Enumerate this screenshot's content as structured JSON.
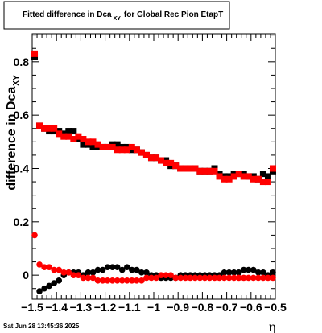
{
  "footer": {
    "timestamp": "Sat Jun 28 13:45:36 2025"
  },
  "chart_data": {
    "type": "scatter",
    "title": "Fitted difference in Dca",
    "title_subscript": "XY",
    "title_suffix": "for Global Rec Pion EtapT",
    "ylabel": "difference in Dca",
    "ylabel_subscript": "XY",
    "xlabel": "η",
    "xlim": [
      -1.5,
      -0.5
    ],
    "ylim": [
      -0.09,
      0.905
    ],
    "x_tick_labels": [
      "−1.5",
      "−1.4",
      "−1.3",
      "−1.2",
      "−1.1",
      "−1",
      "−0.9",
      "−0.8",
      "−0.7",
      "−0.6",
      "−0.5"
    ],
    "y_tick_labels": [
      "0",
      "0.2",
      "0.4",
      "0.6",
      "0.8"
    ],
    "grid": false,
    "legend": "none",
    "series": [
      {
        "marker": "square",
        "color": "#000000",
        "points": [
          [
            -1.49,
            0.82
          ],
          [
            -1.47,
            0.56
          ],
          [
            -1.45,
            0.55
          ],
          [
            -1.43,
            0.54
          ],
          [
            -1.41,
            0.54
          ],
          [
            -1.39,
            0.54
          ],
          [
            -1.37,
            0.53
          ],
          [
            -1.35,
            0.54
          ],
          [
            -1.33,
            0.54
          ],
          [
            -1.31,
            0.51
          ],
          [
            -1.29,
            0.49
          ],
          [
            -1.27,
            0.49
          ],
          [
            -1.25,
            0.48
          ],
          [
            -1.23,
            0.48
          ],
          [
            -1.21,
            0.48
          ],
          [
            -1.19,
            0.48
          ],
          [
            -1.17,
            0.49
          ],
          [
            -1.15,
            0.49
          ],
          [
            -1.13,
            0.48
          ],
          [
            -1.11,
            0.48
          ],
          [
            -1.09,
            0.47
          ],
          [
            -1.07,
            0.47
          ],
          [
            -1.05,
            0.46
          ],
          [
            -1.03,
            0.45
          ],
          [
            -1.01,
            0.44
          ],
          [
            -0.99,
            0.44
          ],
          [
            -0.97,
            0.43
          ],
          [
            -0.95,
            0.43
          ],
          [
            -0.93,
            0.41
          ],
          [
            -0.91,
            0.41
          ],
          [
            -0.89,
            0.4
          ],
          [
            -0.87,
            0.4
          ],
          [
            -0.85,
            0.4
          ],
          [
            -0.83,
            0.4
          ],
          [
            -0.81,
            0.39
          ],
          [
            -0.79,
            0.39
          ],
          [
            -0.77,
            0.39
          ],
          [
            -0.75,
            0.4
          ],
          [
            -0.73,
            0.38
          ],
          [
            -0.71,
            0.37
          ],
          [
            -0.69,
            0.37
          ],
          [
            -0.67,
            0.38
          ],
          [
            -0.65,
            0.38
          ],
          [
            -0.63,
            0.38
          ],
          [
            -0.61,
            0.37
          ],
          [
            -0.59,
            0.37
          ],
          [
            -0.57,
            0.36
          ],
          [
            -0.55,
            0.38
          ],
          [
            -0.53,
            0.37
          ],
          [
            -0.51,
            0.39
          ]
        ]
      },
      {
        "marker": "square",
        "color": "#ff0000",
        "points": [
          [
            -1.49,
            0.83
          ],
          [
            -1.47,
            0.56
          ],
          [
            -1.45,
            0.55
          ],
          [
            -1.43,
            0.55
          ],
          [
            -1.41,
            0.55
          ],
          [
            -1.39,
            0.53
          ],
          [
            -1.37,
            0.52
          ],
          [
            -1.35,
            0.52
          ],
          [
            -1.33,
            0.51
          ],
          [
            -1.31,
            0.52
          ],
          [
            -1.29,
            0.51
          ],
          [
            -1.27,
            0.5
          ],
          [
            -1.25,
            0.5
          ],
          [
            -1.23,
            0.49
          ],
          [
            -1.21,
            0.48
          ],
          [
            -1.19,
            0.48
          ],
          [
            -1.17,
            0.48
          ],
          [
            -1.15,
            0.47
          ],
          [
            -1.13,
            0.47
          ],
          [
            -1.11,
            0.47
          ],
          [
            -1.09,
            0.48
          ],
          [
            -1.07,
            0.47
          ],
          [
            -1.05,
            0.46
          ],
          [
            -1.03,
            0.45
          ],
          [
            -1.01,
            0.44
          ],
          [
            -0.99,
            0.44
          ],
          [
            -0.97,
            0.43
          ],
          [
            -0.95,
            0.42
          ],
          [
            -0.93,
            0.42
          ],
          [
            -0.91,
            0.41
          ],
          [
            -0.89,
            0.4
          ],
          [
            -0.87,
            0.4
          ],
          [
            -0.85,
            0.4
          ],
          [
            -0.83,
            0.4
          ],
          [
            -0.81,
            0.39
          ],
          [
            -0.79,
            0.39
          ],
          [
            -0.77,
            0.39
          ],
          [
            -0.75,
            0.39
          ],
          [
            -0.73,
            0.37
          ],
          [
            -0.71,
            0.36
          ],
          [
            -0.69,
            0.36
          ],
          [
            -0.67,
            0.37
          ],
          [
            -0.65,
            0.38
          ],
          [
            -0.63,
            0.37
          ],
          [
            -0.61,
            0.37
          ],
          [
            -0.59,
            0.36
          ],
          [
            -0.57,
            0.36
          ],
          [
            -0.55,
            0.35
          ],
          [
            -0.53,
            0.35
          ],
          [
            -0.51,
            0.4
          ]
        ]
      },
      {
        "marker": "circle",
        "color": "#000000",
        "points": [
          [
            -1.47,
            -0.06
          ],
          [
            -1.45,
            -0.05
          ],
          [
            -1.43,
            -0.04
          ],
          [
            -1.41,
            -0.03
          ],
          [
            -1.39,
            -0.02
          ],
          [
            -1.37,
            0.0
          ],
          [
            -1.35,
            0.01
          ],
          [
            -1.33,
            0.01
          ],
          [
            -1.31,
            0.01
          ],
          [
            -1.29,
            0.0
          ],
          [
            -1.27,
            0.01
          ],
          [
            -1.25,
            0.01
          ],
          [
            -1.23,
            0.02
          ],
          [
            -1.21,
            0.02
          ],
          [
            -1.19,
            0.03
          ],
          [
            -1.17,
            0.03
          ],
          [
            -1.15,
            0.03
          ],
          [
            -1.13,
            0.02
          ],
          [
            -1.11,
            0.03
          ],
          [
            -1.09,
            0.02
          ],
          [
            -1.07,
            0.02
          ],
          [
            -1.05,
            0.01
          ],
          [
            -1.03,
            0.01
          ],
          [
            -1.01,
            0.0
          ],
          [
            -0.99,
            0.0
          ],
          [
            -0.97,
            -0.01
          ],
          [
            -0.95,
            -0.01
          ],
          [
            -0.93,
            -0.01
          ],
          [
            -0.91,
            -0.01
          ],
          [
            -0.89,
            0.0
          ],
          [
            -0.87,
            0.0
          ],
          [
            -0.85,
            0.0
          ],
          [
            -0.83,
            0.0
          ],
          [
            -0.81,
            0.0
          ],
          [
            -0.79,
            0.0
          ],
          [
            -0.77,
            0.0
          ],
          [
            -0.75,
            0.0
          ],
          [
            -0.73,
            0.0
          ],
          [
            -0.71,
            0.01
          ],
          [
            -0.69,
            0.01
          ],
          [
            -0.67,
            0.01
          ],
          [
            -0.65,
            0.01
          ],
          [
            -0.63,
            0.02
          ],
          [
            -0.61,
            0.02
          ],
          [
            -0.59,
            0.02
          ],
          [
            -0.57,
            0.01
          ],
          [
            -0.55,
            0.01
          ],
          [
            -0.53,
            0.0
          ],
          [
            -0.51,
            0.01
          ]
        ]
      },
      {
        "marker": "circle",
        "color": "#ff0000",
        "points": [
          [
            -1.49,
            0.15
          ],
          [
            -1.47,
            0.04
          ],
          [
            -1.45,
            0.03
          ],
          [
            -1.43,
            0.03
          ],
          [
            -1.41,
            0.02
          ],
          [
            -1.39,
            0.02
          ],
          [
            -1.37,
            0.01
          ],
          [
            -1.35,
            0.01
          ],
          [
            -1.33,
            0.0
          ],
          [
            -1.31,
            0.0
          ],
          [
            -1.29,
            -0.01
          ],
          [
            -1.27,
            -0.01
          ],
          [
            -1.25,
            -0.01
          ],
          [
            -1.23,
            -0.02
          ],
          [
            -1.21,
            -0.02
          ],
          [
            -1.19,
            -0.02
          ],
          [
            -1.17,
            -0.02
          ],
          [
            -1.15,
            -0.02
          ],
          [
            -1.13,
            -0.02
          ],
          [
            -1.11,
            -0.02
          ],
          [
            -1.09,
            -0.02
          ],
          [
            -1.07,
            -0.02
          ],
          [
            -1.05,
            -0.02
          ],
          [
            -1.03,
            -0.01
          ],
          [
            -1.01,
            -0.01
          ],
          [
            -0.99,
            -0.01
          ],
          [
            -0.97,
            0.0
          ],
          [
            -0.95,
            0.0
          ],
          [
            -0.93,
            0.0
          ],
          [
            -0.91,
            -0.01
          ],
          [
            -0.89,
            -0.01
          ],
          [
            -0.87,
            -0.01
          ],
          [
            -0.85,
            -0.01
          ],
          [
            -0.83,
            -0.01
          ],
          [
            -0.81,
            -0.01
          ],
          [
            -0.79,
            -0.01
          ],
          [
            -0.77,
            -0.01
          ],
          [
            -0.75,
            -0.01
          ],
          [
            -0.73,
            -0.01
          ],
          [
            -0.71,
            -0.01
          ],
          [
            -0.69,
            -0.01
          ],
          [
            -0.67,
            -0.01
          ],
          [
            -0.65,
            -0.01
          ],
          [
            -0.63,
            -0.01
          ],
          [
            -0.61,
            -0.01
          ],
          [
            -0.59,
            -0.01
          ],
          [
            -0.57,
            -0.01
          ],
          [
            -0.55,
            -0.01
          ],
          [
            -0.53,
            -0.01
          ],
          [
            -0.51,
            -0.01
          ]
        ]
      }
    ]
  }
}
